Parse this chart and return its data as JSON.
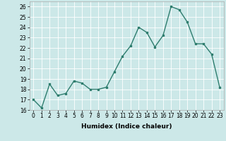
{
  "x": [
    0,
    1,
    2,
    3,
    4,
    5,
    6,
    7,
    8,
    9,
    10,
    11,
    12,
    13,
    14,
    15,
    16,
    17,
    18,
    19,
    20,
    21,
    22,
    23
  ],
  "y": [
    17.0,
    16.2,
    18.5,
    17.4,
    17.6,
    18.8,
    18.6,
    18.0,
    18.0,
    18.2,
    19.7,
    21.2,
    22.2,
    24.0,
    23.5,
    22.1,
    23.2,
    26.0,
    25.7,
    24.5,
    22.4,
    22.4,
    21.4,
    18.2
  ],
  "line_color": "#2e7d6e",
  "marker": "s",
  "marker_size": 2.0,
  "linewidth": 1.0,
  "xlabel": "Humidex (Indice chaleur)",
  "ylim": [
    16,
    26.5
  ],
  "xlim": [
    -0.5,
    23.5
  ],
  "yticks": [
    16,
    17,
    18,
    19,
    20,
    21,
    22,
    23,
    24,
    25,
    26
  ],
  "xticks": [
    0,
    1,
    2,
    3,
    4,
    5,
    6,
    7,
    8,
    9,
    10,
    11,
    12,
    13,
    14,
    15,
    16,
    17,
    18,
    19,
    20,
    21,
    22,
    23
  ],
  "bg_color": "#cce8e8",
  "grid_color": "#ffffff",
  "tick_fontsize": 5.5,
  "xlabel_fontsize": 6.5
}
